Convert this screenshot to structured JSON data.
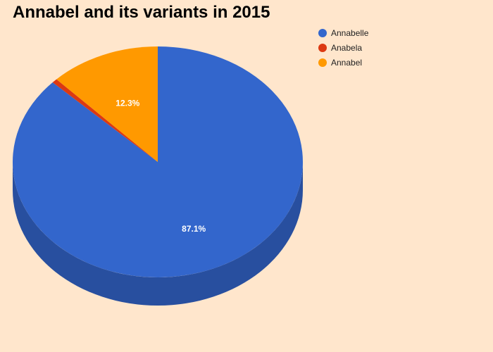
{
  "chart_data": {
    "type": "pie",
    "title": "Annabel and its variants in 2015",
    "labels": [
      "Annabelle",
      "Anabela",
      "Annabel"
    ],
    "values": [
      87.1,
      0.6,
      12.3
    ],
    "colors": [
      "#3366cc",
      "#dc3912",
      "#ff9900"
    ],
    "side_colors": [
      "#284f9f",
      "#a72b0e",
      "#c47600"
    ],
    "data_labels": [
      "87.1%",
      "",
      "12.3%"
    ],
    "legend_position": "top-right",
    "is_3d": true
  }
}
